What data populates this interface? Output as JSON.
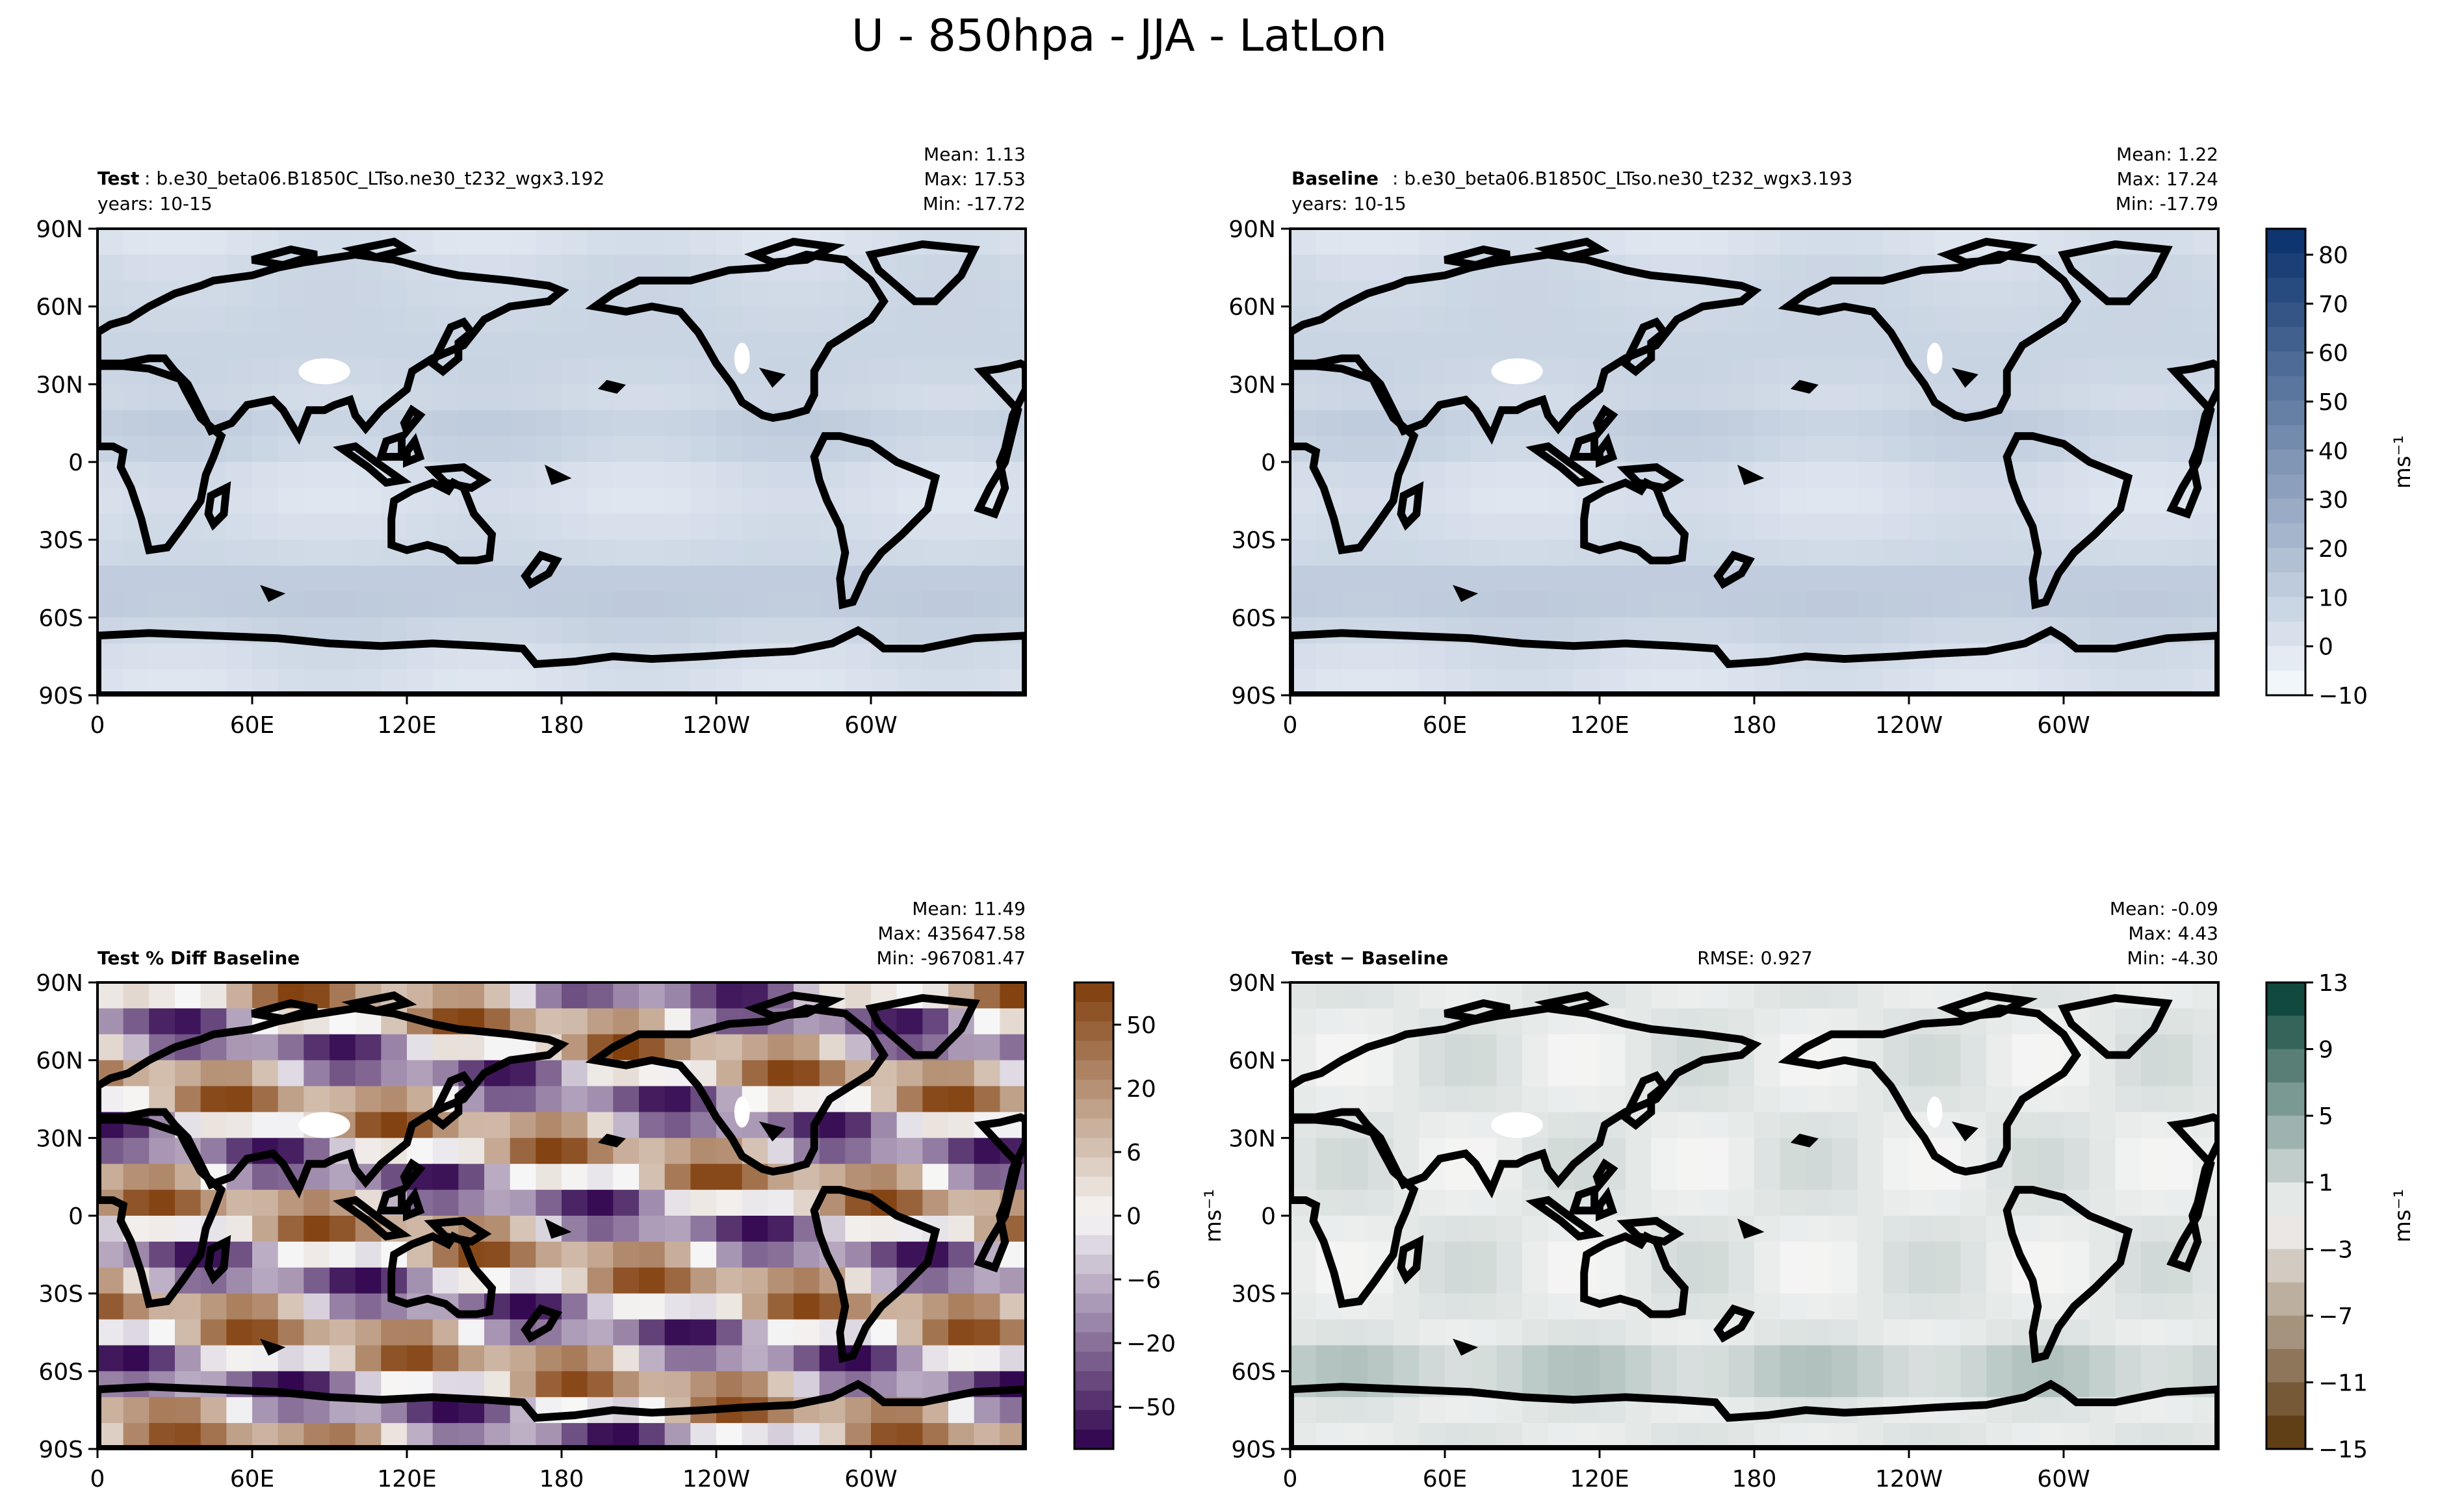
{
  "figure_title": "U - 850hpa - JJA - LatLon",
  "colors": {
    "frame": "#000000",
    "coast": "#000000",
    "land_mask": "#ffffff",
    "blues_low": "#f7fbff",
    "blues_high": "#08306b",
    "puor_low": "#2d004b",
    "puor_mid": "#f7f7f7",
    "puor_high": "#7f3b08",
    "brbg_low": "#543005",
    "brbg_mid": "#f5f5f5",
    "brbg_high": "#003c30"
  },
  "chart_data": [
    {
      "type": "heatmap",
      "panel": "test",
      "title_bold": "Test",
      "title_rest": ": b.e30_beta06.B1850C_LTso.ne30_t232_wgx3.192",
      "subtitle": "years: 10-15",
      "stats": {
        "mean": "Mean:  1.13",
        "max": "Max: 17.53",
        "min": "Min: -17.72"
      },
      "xticks": [
        "0",
        "60E",
        "120E",
        "180",
        "120W",
        "60W"
      ],
      "yticks": [
        "90N",
        "60N",
        "30N",
        "0",
        "30S",
        "60S",
        "90S"
      ],
      "xlim": [
        0,
        360
      ],
      "ylim": [
        -90,
        90
      ],
      "colormap": "Blues",
      "zonal_profile": [
        {
          "lat": 80,
          "value": 5
        },
        {
          "lat": 60,
          "value": 7
        },
        {
          "lat": 40,
          "value": 8
        },
        {
          "lat": 25,
          "value": 6
        },
        {
          "lat": 10,
          "value": 12
        },
        {
          "lat": 0,
          "value": 4
        },
        {
          "lat": -15,
          "value": 2
        },
        {
          "lat": -35,
          "value": 6
        },
        {
          "lat": -50,
          "value": 14
        },
        {
          "lat": -65,
          "value": 8
        },
        {
          "lat": -80,
          "value": 2
        }
      ]
    },
    {
      "type": "heatmap",
      "panel": "baseline",
      "title_bold": "Baseline",
      "title_rest": ": b.e30_beta06.B1850C_LTso.ne30_t232_wgx3.193",
      "subtitle": "years: 10-15",
      "stats": {
        "mean": "Mean:  1.22",
        "max": "Max: 17.24",
        "min": "Min: -17.79"
      },
      "xticks": [
        "0",
        "60E",
        "120E",
        "180",
        "120W",
        "60W"
      ],
      "yticks": [
        "90N",
        "60N",
        "30N",
        "0",
        "30S",
        "60S",
        "90S"
      ],
      "xlim": [
        0,
        360
      ],
      "ylim": [
        -90,
        90
      ],
      "colormap": "Blues",
      "colorbar": {
        "ticks": [
          "80",
          "70",
          "60",
          "50",
          "40",
          "30",
          "20",
          "10",
          "0",
          "−10"
        ],
        "range": [
          -10,
          85
        ],
        "levels": 19,
        "unit": "ms⁻¹"
      },
      "zonal_profile": [
        {
          "lat": 80,
          "value": 5
        },
        {
          "lat": 60,
          "value": 7
        },
        {
          "lat": 40,
          "value": 8
        },
        {
          "lat": 25,
          "value": 6
        },
        {
          "lat": 10,
          "value": 12
        },
        {
          "lat": 0,
          "value": 4
        },
        {
          "lat": -15,
          "value": 2
        },
        {
          "lat": -35,
          "value": 6
        },
        {
          "lat": -50,
          "value": 14
        },
        {
          "lat": -65,
          "value": 8
        },
        {
          "lat": -80,
          "value": 2
        }
      ]
    },
    {
      "type": "heatmap",
      "panel": "pct_diff",
      "title_bold": "Test % Diff Baseline",
      "stats": {
        "mean": "Mean: 11.49",
        "max": "Max: 435647.58",
        "min": "Min: -967081.47"
      },
      "xticks": [
        "0",
        "60E",
        "120E",
        "180",
        "120W",
        "60W"
      ],
      "yticks": [
        "90N",
        "60N",
        "30N",
        "0",
        "30S",
        "60S",
        "90S"
      ],
      "xlim": [
        0,
        360
      ],
      "ylim": [
        -90,
        90
      ],
      "colormap": "PuOr",
      "colorbar": {
        "ticks": [
          "50",
          "20",
          "6",
          "0",
          "−6",
          "−20",
          "−50"
        ],
        "levels": 24,
        "unit": "ms⁻¹"
      }
    },
    {
      "type": "heatmap",
      "panel": "diff",
      "title_bold": "Test − Baseline",
      "rmse": "RMSE: 0.927",
      "stats": {
        "mean": "Mean: -0.09",
        "max": "Max:  4.43",
        "min": "Min: -4.30"
      },
      "xticks": [
        "0",
        "60E",
        "120E",
        "180",
        "120W",
        "60W"
      ],
      "yticks": [
        "90N",
        "60N",
        "30N",
        "0",
        "30S",
        "60S",
        "90S"
      ],
      "xlim": [
        0,
        360
      ],
      "ylim": [
        -90,
        90
      ],
      "colormap": "BrBG",
      "colorbar": {
        "ticks": [
          "13",
          "9",
          "5",
          "1",
          "−3",
          "−7",
          "−11",
          "−15"
        ],
        "range": [
          -15,
          13
        ],
        "levels": 14,
        "unit": "ms⁻¹"
      }
    }
  ]
}
